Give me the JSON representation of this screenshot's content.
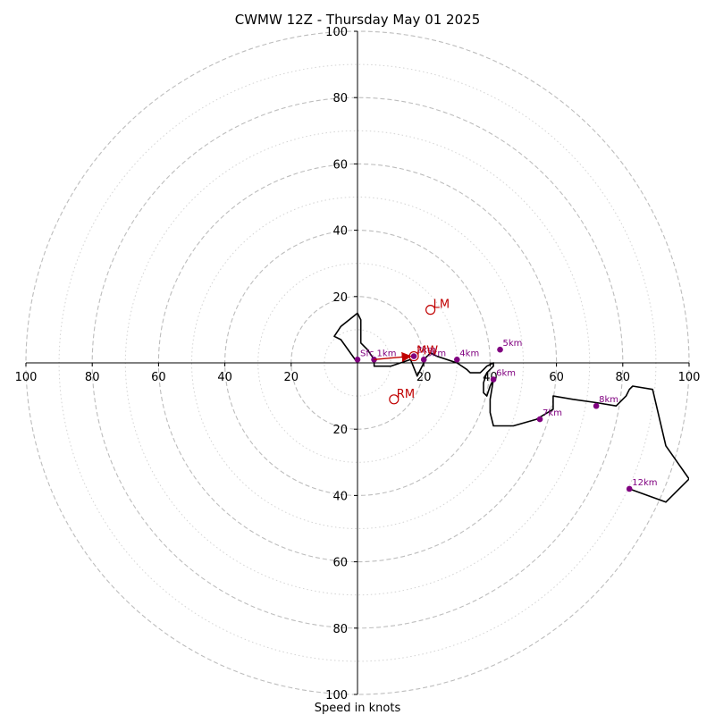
{
  "chart_data": {
    "type": "hodograph",
    "title": "CWMW 12Z - Thursday May 01 2025",
    "xlabel": "Speed in knots",
    "range": [
      -100,
      100
    ],
    "ring_major": [
      20,
      40,
      60,
      80,
      100
    ],
    "ring_minor": [
      10,
      30,
      50,
      70,
      90
    ],
    "x_ticks": [
      "100",
      "80",
      "60",
      "40",
      "20",
      "20",
      "40",
      "60",
      "80",
      "100"
    ],
    "x_tick_values": [
      -100,
      -80,
      -60,
      -40,
      -20,
      20,
      40,
      60,
      80,
      100
    ],
    "y_ticks_top": [
      "100",
      "80",
      "60",
      "40",
      "20"
    ],
    "y_tick_values_top": [
      100,
      80,
      60,
      40,
      20
    ],
    "y_ticks_bottom": [
      "20",
      "40",
      "60",
      "80",
      "100"
    ],
    "y_tick_values_bottom": [
      -20,
      -40,
      -60,
      -80,
      -100
    ],
    "trace": {
      "color": "#000000",
      "points": [
        [
          0,
          0
        ],
        [
          -5,
          7
        ],
        [
          -7,
          8
        ],
        [
          -5,
          11
        ],
        [
          0,
          15
        ],
        [
          1,
          13
        ],
        [
          1,
          6
        ],
        [
          3,
          4
        ],
        [
          5,
          1
        ],
        [
          5,
          0
        ],
        [
          5,
          -1
        ],
        [
          7,
          -1
        ],
        [
          10,
          -1
        ],
        [
          16,
          1
        ],
        [
          18,
          -4
        ],
        [
          19,
          -2
        ],
        [
          20,
          0
        ],
        [
          20,
          1
        ],
        [
          22,
          3
        ],
        [
          24,
          2
        ],
        [
          30,
          0
        ],
        [
          33,
          -2
        ],
        [
          34,
          -3
        ],
        [
          37,
          -3
        ],
        [
          38,
          -2
        ],
        [
          39,
          -1
        ],
        [
          41,
          0
        ],
        [
          41,
          -1
        ],
        [
          39,
          -3
        ],
        [
          38,
          -6
        ],
        [
          38,
          -9
        ],
        [
          39,
          -10
        ],
        [
          40,
          -7
        ],
        [
          41,
          -5
        ],
        [
          40,
          -11
        ],
        [
          40,
          -15
        ],
        [
          41,
          -19
        ],
        [
          47,
          -19
        ],
        [
          54,
          -17
        ],
        [
          59,
          -14
        ],
        [
          59,
          -10
        ],
        [
          65,
          -11
        ],
        [
          72,
          -12
        ],
        [
          78,
          -13
        ],
        [
          81,
          -10
        ],
        [
          82,
          -8
        ],
        [
          83,
          -7
        ],
        [
          89,
          -8
        ],
        [
          93,
          -25
        ],
        [
          93,
          -25
        ],
        [
          100,
          -35
        ],
        [
          100,
          -35
        ],
        [
          93,
          -42
        ],
        [
          82,
          -38
        ]
      ]
    },
    "height_markers": {
      "color": "#800080",
      "points": [
        {
          "label": "Sfc",
          "u": 0,
          "v": 1
        },
        {
          "label": "1km",
          "u": 5,
          "v": 1
        },
        {
          "label": "2km",
          "u": 17,
          "v": 2
        },
        {
          "label": "3km",
          "u": 20,
          "v": 1
        },
        {
          "label": "4km",
          "u": 30,
          "v": 1
        },
        {
          "label": "5km",
          "u": 43,
          "v": 4
        },
        {
          "label": "6km",
          "u": 41,
          "v": -5
        },
        {
          "label": "7km",
          "u": 55,
          "v": -17
        },
        {
          "label": "8km",
          "u": 72,
          "v": -13
        },
        {
          "label": "12km",
          "u": 82,
          "v": -38
        }
      ]
    },
    "storm_motion": {
      "color": "#c00000",
      "points": [
        {
          "label": "LM",
          "u": 22,
          "v": 16
        },
        {
          "label": "RM",
          "u": 11,
          "v": -11
        },
        {
          "label": "MW",
          "u": 17,
          "v": 2
        }
      ],
      "arrow": {
        "from": [
          5,
          1
        ],
        "to": [
          16,
          2
        ]
      }
    }
  }
}
